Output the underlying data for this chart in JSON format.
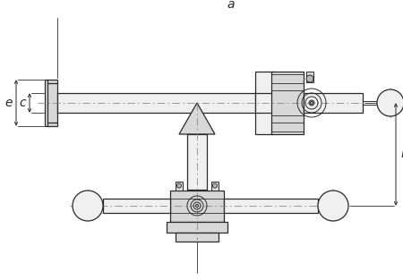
{
  "bg_color": "#ffffff",
  "line_color": "#2a2a2a",
  "dim_color": "#2a2a2a",
  "dash_color": "#888888",
  "fill_light": "#f0f0f0",
  "fill_mid": "#d8d8d8",
  "fill_dark": "#b8b8b8",
  "fig_width": 4.5,
  "fig_height": 3.13,
  "dpi": 100,
  "label_a": "a",
  "label_b": "b",
  "label_c": "c",
  "label_e": "e"
}
